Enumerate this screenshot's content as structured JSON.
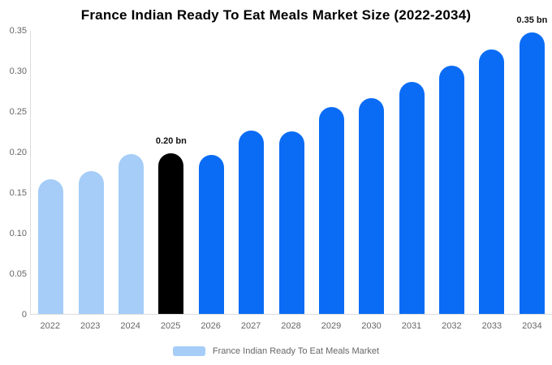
{
  "title": "France Indian Ready To Eat Meals Market Size (2022-2034)",
  "legend": {
    "label": "France Indian Ready To Eat Meals Market",
    "swatch_color": "#a5cdf8"
  },
  "colors": {
    "historical": "#a5cdf8",
    "base-year": "#000000",
    "forecast": "#0a6cf5",
    "axis_line": "#dcdcdc",
    "tick_text": "#666666",
    "annotation_text": "#111111",
    "title_text": "#000000"
  },
  "chart_data": {
    "type": "bar",
    "title": "France Indian Ready To Eat Meals Market Size (2022-2034)",
    "unit": "bn",
    "xlabel": "",
    "ylabel": "",
    "ylim": [
      0,
      0.35
    ],
    "grid": false,
    "legend_position": "bottom",
    "yticks": [
      "0.35",
      "0.30",
      "0.25",
      "0.20",
      "0.15",
      "0.10",
      "0.05",
      "0"
    ],
    "categories": [
      "2022",
      "2023",
      "2024",
      "2025",
      "2026",
      "2027",
      "2028",
      "2029",
      "2030",
      "2031",
      "2032",
      "2033",
      "2034"
    ],
    "values": [
      0.166,
      0.176,
      0.197,
      0.198,
      0.196,
      0.226,
      0.225,
      0.255,
      0.266,
      0.286,
      0.306,
      0.326,
      0.347
    ],
    "bars": [
      {
        "year": "2022",
        "value": 0.166,
        "segment": "historical"
      },
      {
        "year": "2023",
        "value": 0.176,
        "segment": "historical"
      },
      {
        "year": "2024",
        "value": 0.197,
        "segment": "historical"
      },
      {
        "year": "2025",
        "value": 0.198,
        "segment": "base-year",
        "label": "0.20 bn"
      },
      {
        "year": "2026",
        "value": 0.196,
        "segment": "forecast"
      },
      {
        "year": "2027",
        "value": 0.226,
        "segment": "forecast"
      },
      {
        "year": "2028",
        "value": 0.225,
        "segment": "forecast"
      },
      {
        "year": "2029",
        "value": 0.255,
        "segment": "forecast"
      },
      {
        "year": "2030",
        "value": 0.266,
        "segment": "forecast"
      },
      {
        "year": "2031",
        "value": 0.286,
        "segment": "forecast"
      },
      {
        "year": "2032",
        "value": 0.306,
        "segment": "forecast"
      },
      {
        "year": "2033",
        "value": 0.326,
        "segment": "forecast"
      },
      {
        "year": "2034",
        "value": 0.347,
        "segment": "forecast",
        "label": "0.35 bn"
      }
    ],
    "annotations": [
      {
        "year": "2025",
        "text": "0.20 bn"
      },
      {
        "year": "2034",
        "text": "0.35 bn"
      }
    ]
  }
}
